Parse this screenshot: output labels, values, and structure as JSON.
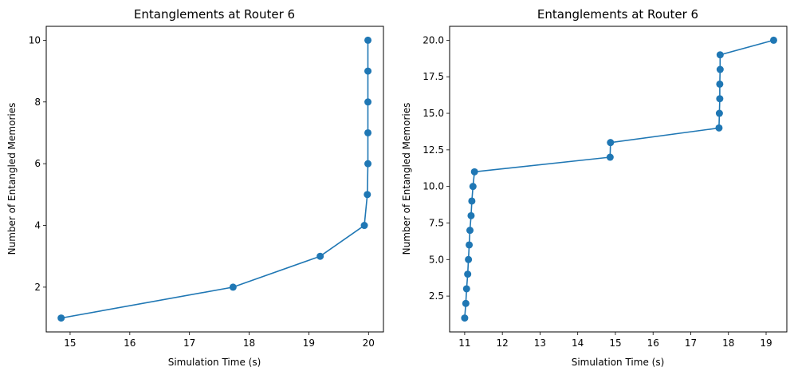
{
  "chart_data": [
    {
      "type": "line",
      "title": "Entanglements at Router 6",
      "xlabel": "Simulation Time (s)",
      "ylabel": "Number of Entangled Memories",
      "xlim": [
        14.6,
        20.25
      ],
      "ylim": [
        0.55,
        10.45
      ],
      "xticks": [
        15,
        16,
        17,
        18,
        19,
        20
      ],
      "yticks": [
        2,
        4,
        6,
        8,
        10
      ],
      "xtick_labels": [
        "15",
        "16",
        "17",
        "18",
        "19",
        "20"
      ],
      "ytick_labels": [
        "2",
        "4",
        "6",
        "8",
        "10"
      ],
      "grid": false,
      "color": "#1f77b4",
      "points": [
        {
          "x": 14.85,
          "y": 1
        },
        {
          "x": 17.73,
          "y": 2
        },
        {
          "x": 19.19,
          "y": 3
        },
        {
          "x": 19.93,
          "y": 4
        },
        {
          "x": 19.98,
          "y": 5
        },
        {
          "x": 19.99,
          "y": 6
        },
        {
          "x": 19.99,
          "y": 7
        },
        {
          "x": 19.99,
          "y": 8
        },
        {
          "x": 19.99,
          "y": 9
        },
        {
          "x": 19.99,
          "y": 10
        }
      ]
    },
    {
      "type": "line",
      "title": "Entanglements at Router 6",
      "xlabel": "Simulation Time (s)",
      "ylabel": "Number of Entangled Memories",
      "xlim": [
        10.6,
        19.55
      ],
      "ylim": [
        0.05,
        20.95
      ],
      "xticks": [
        11,
        12,
        13,
        14,
        15,
        16,
        17,
        18,
        19
      ],
      "yticks": [
        2.5,
        5.0,
        7.5,
        10.0,
        12.5,
        15.0,
        17.5,
        20.0
      ],
      "xtick_labels": [
        "11",
        "12",
        "13",
        "14",
        "15",
        "16",
        "17",
        "18",
        "19"
      ],
      "ytick_labels": [
        "2.5",
        "5.0",
        "7.5",
        "10.0",
        "12.5",
        "15.0",
        "17.5",
        "20.0"
      ],
      "grid": false,
      "color": "#1f77b4",
      "points": [
        {
          "x": 11.0,
          "y": 1
        },
        {
          "x": 11.03,
          "y": 2
        },
        {
          "x": 11.05,
          "y": 3
        },
        {
          "x": 11.08,
          "y": 4
        },
        {
          "x": 11.1,
          "y": 5
        },
        {
          "x": 11.12,
          "y": 6
        },
        {
          "x": 11.14,
          "y": 7
        },
        {
          "x": 11.17,
          "y": 8
        },
        {
          "x": 11.19,
          "y": 9
        },
        {
          "x": 11.22,
          "y": 10
        },
        {
          "x": 11.26,
          "y": 11
        },
        {
          "x": 14.86,
          "y": 12
        },
        {
          "x": 14.87,
          "y": 13
        },
        {
          "x": 17.75,
          "y": 14
        },
        {
          "x": 17.76,
          "y": 15
        },
        {
          "x": 17.77,
          "y": 16
        },
        {
          "x": 17.77,
          "y": 17
        },
        {
          "x": 17.78,
          "y": 18
        },
        {
          "x": 17.78,
          "y": 19
        },
        {
          "x": 19.2,
          "y": 20
        }
      ]
    }
  ]
}
